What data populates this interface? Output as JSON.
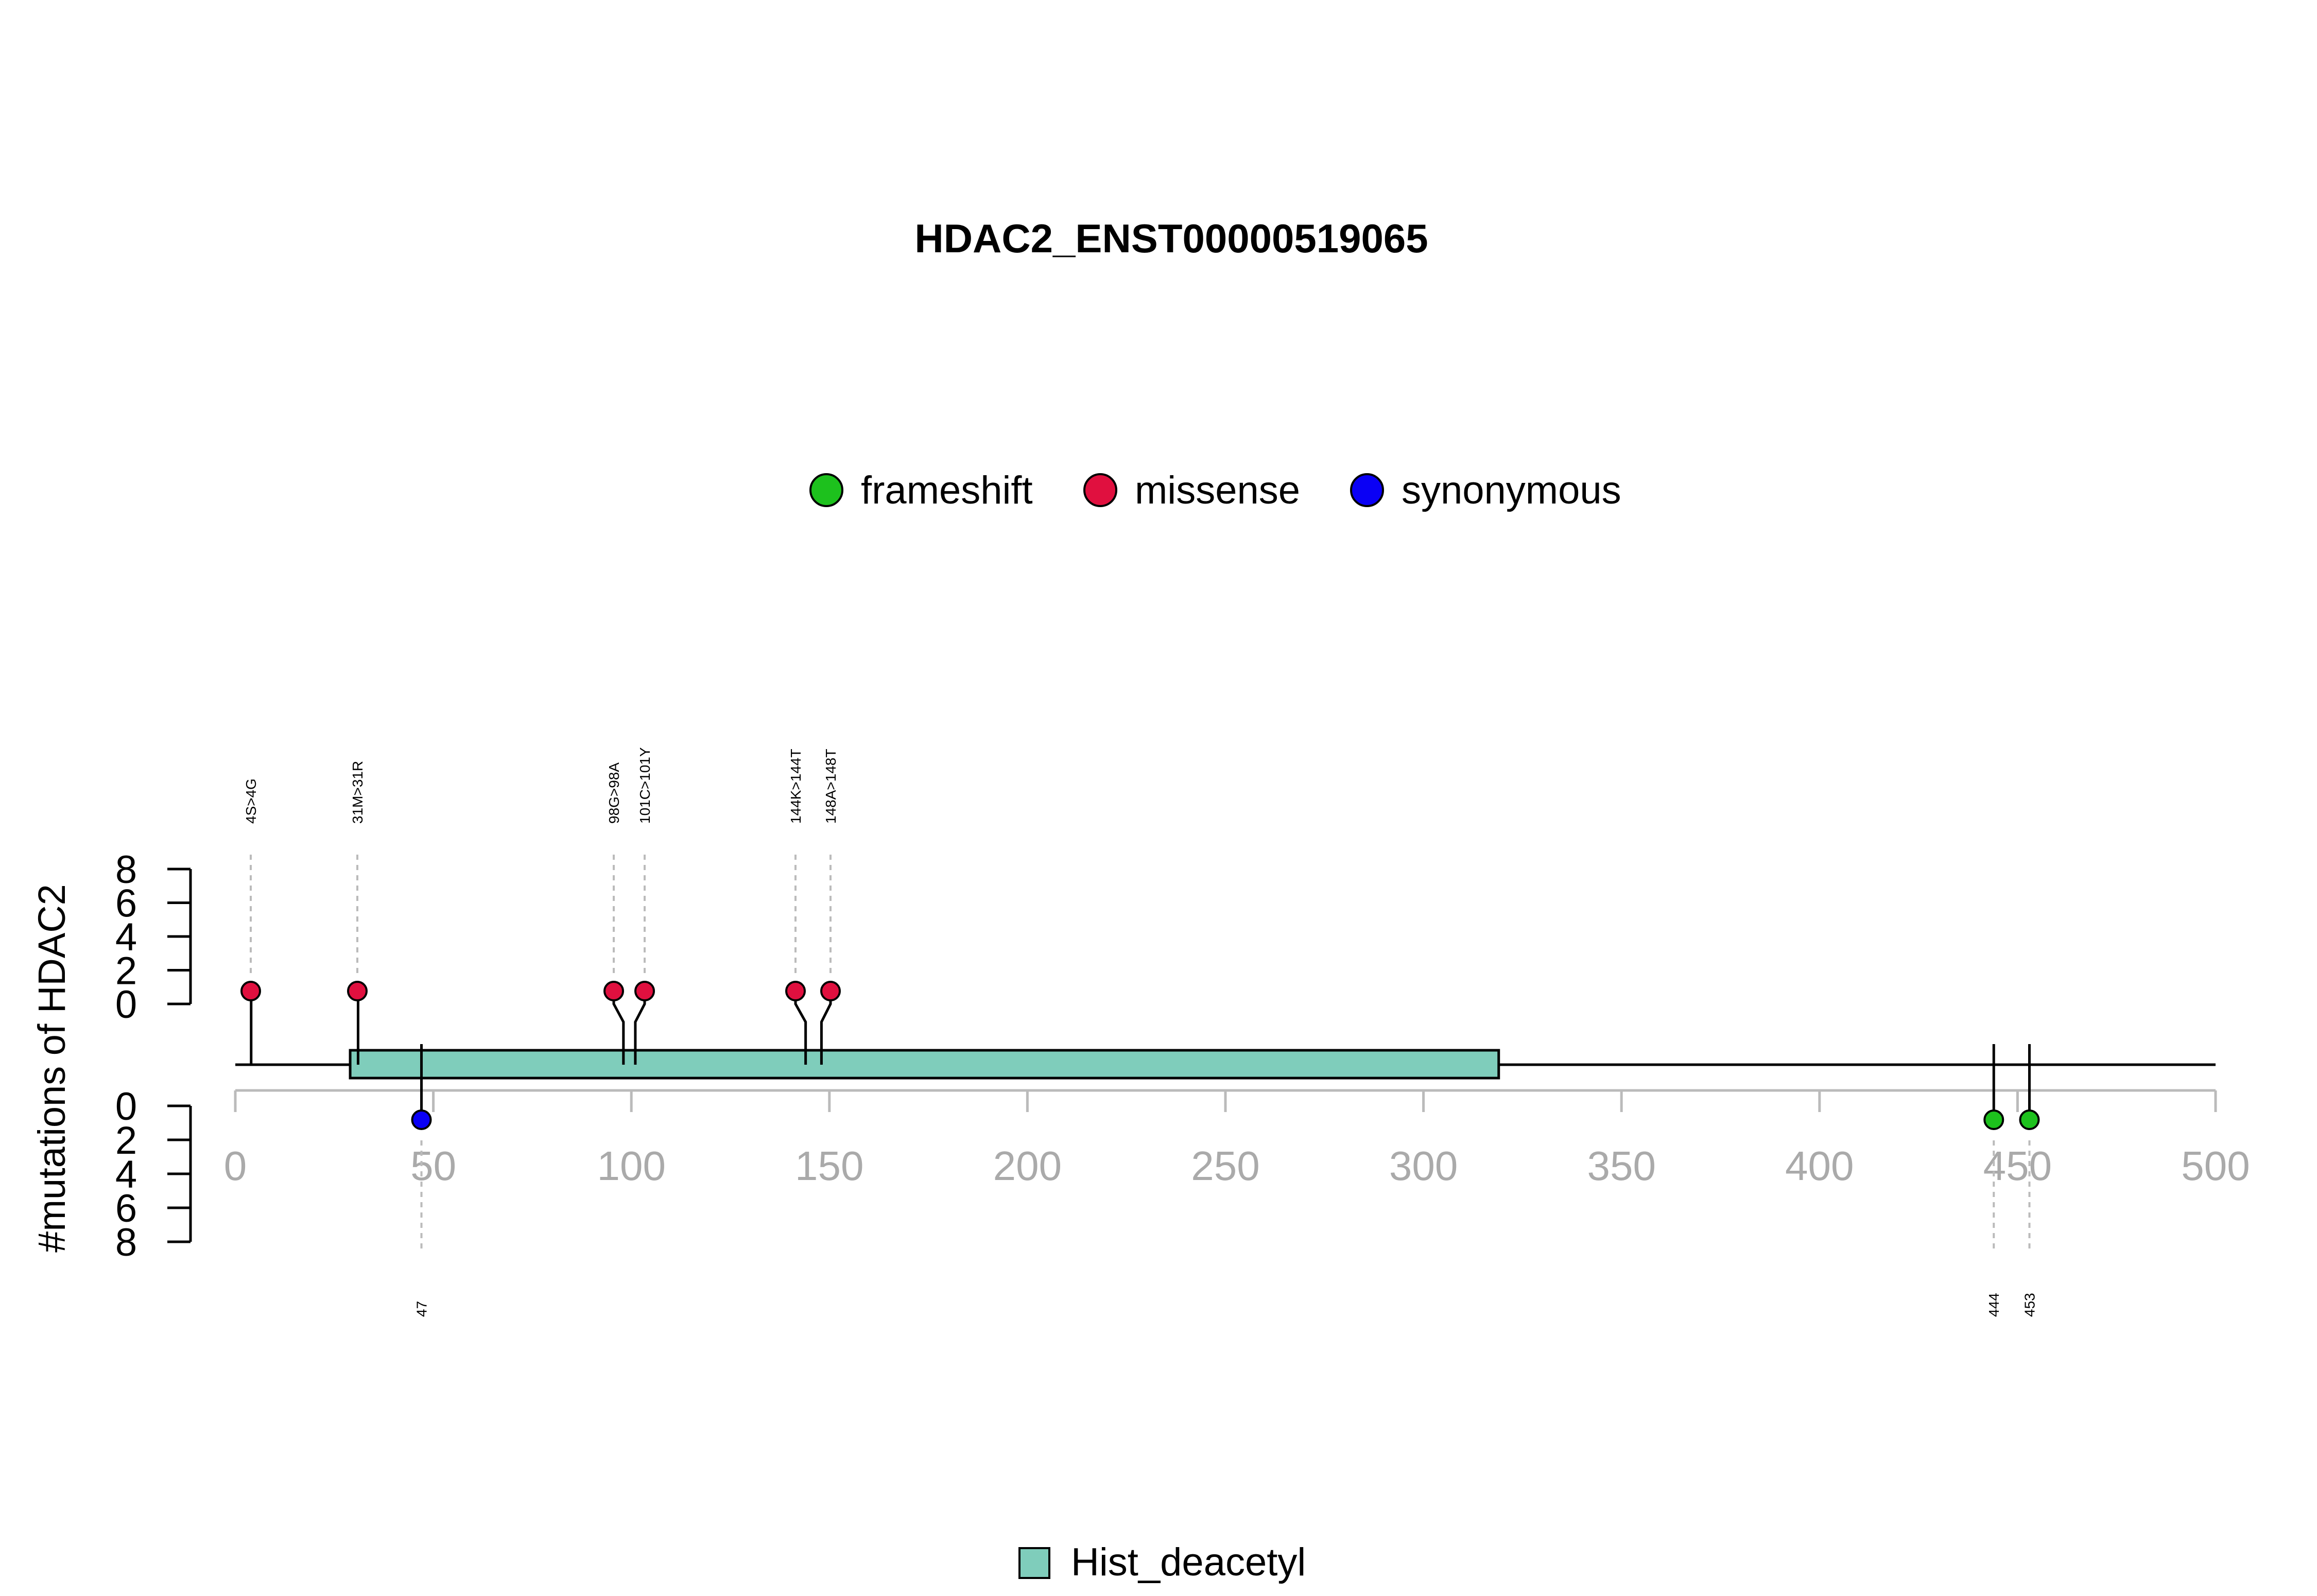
{
  "chart_data": {
    "type": "lollipop",
    "title": "HDAC2_ENST00000519065",
    "ylabel": "#mutations of HDAC2",
    "xlim": [
      0,
      500
    ],
    "x_ticks": [
      "0",
      "50",
      "100",
      "150",
      "200",
      "250",
      "300",
      "350",
      "400",
      "450",
      "500"
    ],
    "y_ticks_upper": [
      "0",
      "2",
      "4",
      "6",
      "8"
    ],
    "y_ticks_lower": [
      "0",
      "2",
      "4",
      "6",
      "8"
    ],
    "ylim": [
      0,
      8
    ],
    "legend": [
      {
        "label": "frameshift",
        "color": "#1DC11D"
      },
      {
        "label": "missense",
        "color": "#E0103F"
      },
      {
        "label": "synonymous",
        "color": "#0A00F5"
      }
    ],
    "mutations_upper": [
      {
        "pos": 4,
        "label": "4S>4G",
        "type": "missense",
        "count": 1
      },
      {
        "pos": 31,
        "label": "31M>31R",
        "type": "missense",
        "count": 1
      },
      {
        "pos": 98,
        "label": "98G>98A",
        "type": "missense",
        "count": 1
      },
      {
        "pos": 101,
        "label": "101C>101Y",
        "type": "missense",
        "count": 1
      },
      {
        "pos": 144,
        "label": "144K>144T",
        "type": "missense",
        "count": 1
      },
      {
        "pos": 148,
        "label": "148A>148T",
        "type": "missense",
        "count": 1
      }
    ],
    "mutations_lower": [
      {
        "pos": 47,
        "label": "47",
        "type": "synonymous",
        "count": 1
      },
      {
        "pos": 444,
        "label": "444",
        "type": "frameshift",
        "count": 1
      },
      {
        "pos": 453,
        "label": "453",
        "type": "frameshift",
        "count": 1
      }
    ],
    "domains": [
      {
        "name": "Hist_deacetyl",
        "start": 29,
        "end": 319,
        "color": "#7FCDBB"
      }
    ],
    "domain_legend": "Hist_deacetyl"
  }
}
